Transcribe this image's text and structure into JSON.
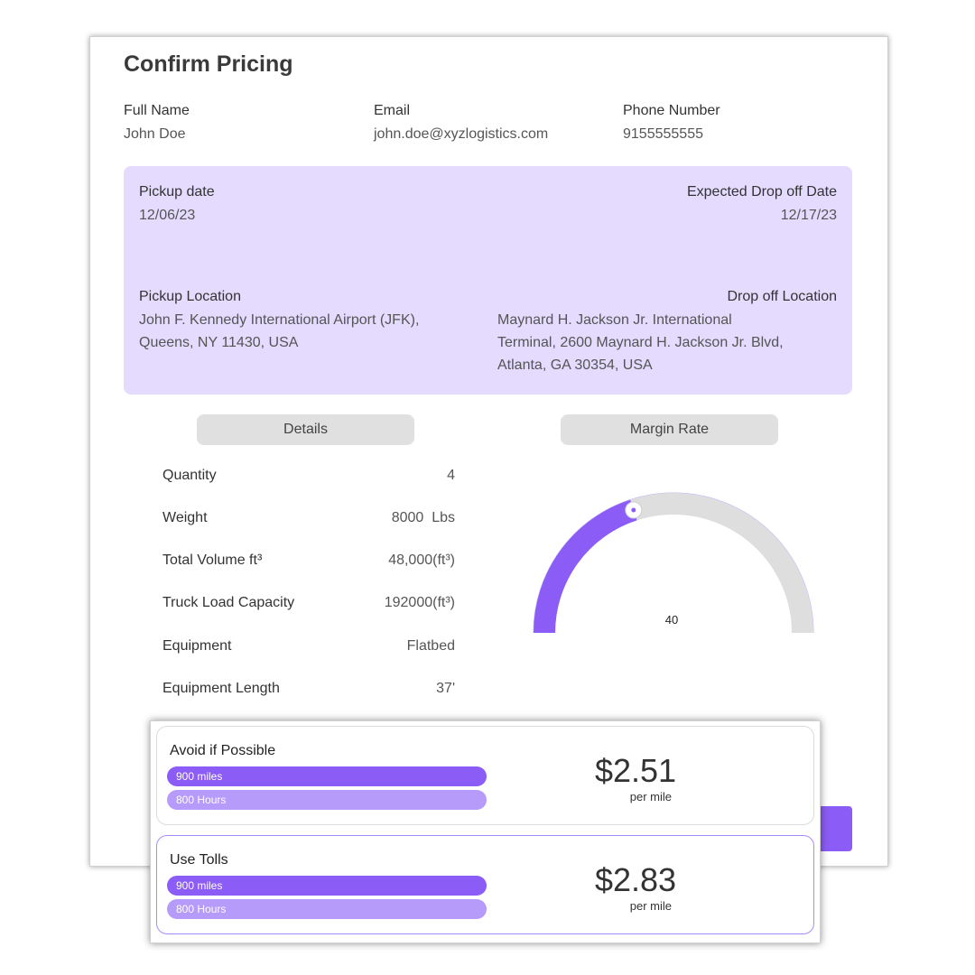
{
  "page": {
    "title": "Confirm Pricing"
  },
  "contact": {
    "full_name_label": "Full Name",
    "full_name": "John Doe",
    "email_label": "Email",
    "email": "john.doe@xyzlogistics.com",
    "phone_label": "Phone Number",
    "phone": "9155555555"
  },
  "shipment": {
    "pickup_date_label": "Pickup date",
    "pickup_date": "12/06/23",
    "dropoff_date_label": "Expected Drop off Date",
    "dropoff_date": "12/17/23",
    "pickup_location_label": "Pickup Location",
    "pickup_location_line1": "John F. Kennedy International Airport (JFK),",
    "pickup_location_line2": "Queens, NY 11430, USA",
    "dropoff_location_label": "Drop off Location",
    "dropoff_location_line1": "Maynard H. Jackson Jr. International",
    "dropoff_location_line2": "Terminal, 2600 Maynard H. Jackson Jr. Blvd,",
    "dropoff_location_line3": "Atlanta, GA 30354, USA"
  },
  "sections": {
    "details_label": "Details",
    "margin_label": "Margin Rate"
  },
  "details": [
    {
      "label": "Quantity",
      "value": "4"
    },
    {
      "label": "Weight",
      "value": "8000  Lbs"
    },
    {
      "label": "Total Volume ft³",
      "value": "48,000(ft³)"
    },
    {
      "label": "Truck Load Capacity",
      "value": "192000(ft³)"
    },
    {
      "label": "Equipment",
      "value": "Flatbed"
    },
    {
      "label": "Equipment Length",
      "value": "37'"
    }
  ],
  "margin": {
    "value": 40,
    "display": "40",
    "max": 100,
    "fill_color": "#8b5cf6",
    "track_color": "#dedede"
  },
  "options": [
    {
      "title": "Avoid if Possible",
      "distance": "900 miles",
      "duration": "800 Hours",
      "price": "$2.51",
      "unit": "per mile",
      "selected": false
    },
    {
      "title": "Use Tolls",
      "distance": "900 miles",
      "duration": "800 Hours",
      "price": "$2.83",
      "unit": "per mile",
      "selected": true
    }
  ],
  "colors": {
    "accent": "#8b5cf6",
    "accent_light": "#b79bfb",
    "panel": "#e4dbff"
  }
}
